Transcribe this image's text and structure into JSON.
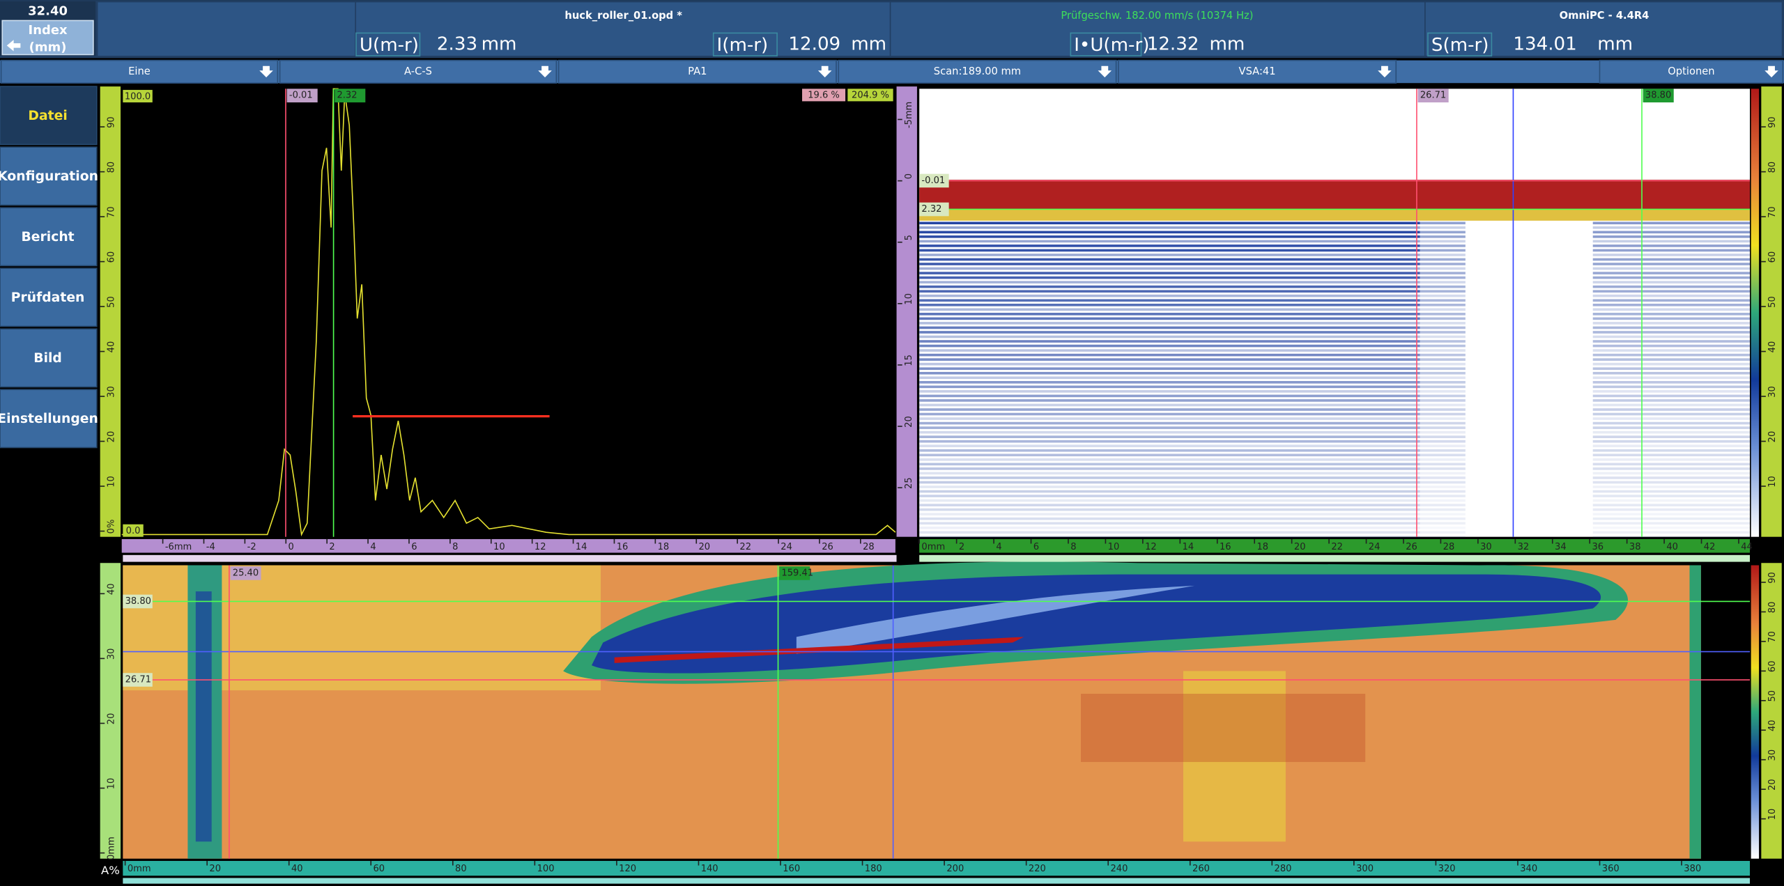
{
  "header": {
    "index_value": "32.40",
    "index_label": "Index",
    "index_unit": "(mm)",
    "file": "huck_roller_01.opd *",
    "speed": "Prüfgeschw. 182.00 mm/s (10374 Hz)",
    "app": "OmniPC - 4.4R4"
  },
  "readings": [
    {
      "label": "U(m-r)",
      "value": "2.33",
      "unit": "mm"
    },
    {
      "label": "I(m-r)",
      "value": "12.09",
      "unit": "mm"
    },
    {
      "label": "I•U(m-r)",
      "value": "12.32",
      "unit": "mm"
    },
    {
      "label": "S(m-r)",
      "value": "134.01",
      "unit": "mm"
    }
  ],
  "toolbar": [
    "Eine",
    "A-C-S",
    "PA1",
    "Scan:189.00 mm",
    "VSA:41",
    "Optionen"
  ],
  "menu": [
    "Datei",
    "Konfiguration",
    "Bericht",
    "Prüfdaten",
    "Bild",
    "Einstellungen"
  ],
  "ascan": {
    "xlim": [
      -8,
      29.7
    ],
    "xticks": [
      {
        "value": -6,
        "label": "-6mm"
      },
      -4,
      -2,
      0,
      2,
      4,
      6,
      8,
      10,
      12,
      14,
      16,
      18,
      20,
      22,
      24,
      26,
      28
    ],
    "ylim": [
      0,
      100
    ],
    "yticks": [
      {
        "value": 0,
        "label": "0%"
      },
      10,
      20,
      30,
      40,
      50,
      60,
      70,
      80,
      90
    ],
    "amp_markers": [
      "100.0",
      "0.0"
    ],
    "gate_labels": [
      "19.6 %",
      "204.9 %"
    ],
    "cursors": [
      {
        "value": -0.01,
        "label": "-0.01"
      },
      {
        "value": 2.32,
        "label": "2.32"
      }
    ]
  },
  "bscan": {
    "xlim": [
      0,
      44.6
    ],
    "xticks": [
      {
        "value": 0,
        "label": "0mm"
      },
      2,
      4,
      6,
      8,
      10,
      12,
      14,
      16,
      18,
      20,
      22,
      24,
      26,
      28,
      30,
      32,
      34,
      36,
      38,
      40,
      42,
      44
    ],
    "ylim": [
      -7.5,
      29
    ],
    "yticks": [
      {
        "value": -5,
        "label": "-5mm"
      },
      0,
      5,
      10,
      15,
      20,
      25
    ],
    "hcursors": [
      {
        "value": -0.01,
        "label": "-0.01"
      },
      {
        "value": 2.32,
        "label": "2.32"
      }
    ],
    "vcursors": [
      {
        "value": 26.71,
        "label": "26.71"
      },
      {
        "value": 38.8,
        "label": "38.80"
      }
    ]
  },
  "bscan_palette": {
    "ylim": [
      0,
      100
    ],
    "yticks": [
      10,
      20,
      30,
      40,
      50,
      60,
      70,
      80,
      90
    ]
  },
  "cscan": {
    "xlim": [
      0,
      385
    ],
    "xticks": [
      {
        "value": 0,
        "label": "0mm"
      },
      20,
      40,
      60,
      80,
      100,
      120,
      140,
      160,
      180,
      200,
      220,
      240,
      260,
      280,
      300,
      320,
      340,
      360,
      380
    ],
    "ylim": [
      0,
      45
    ],
    "yticks": [
      {
        "value": 0,
        "label": "0mm"
      },
      10,
      20,
      30,
      40
    ],
    "hcursors": [
      {
        "value": 38.8,
        "label": "38.80"
      },
      {
        "value": 26.71,
        "label": "26.71"
      }
    ],
    "vcursors": [
      {
        "value": 25.4,
        "label": "25.40"
      },
      {
        "value": 159.41,
        "label": "159.41"
      }
    ],
    "corner": "A%"
  },
  "cscan_palette": {
    "ylim": [
      0,
      100
    ],
    "yticks": [
      10,
      20,
      30,
      40,
      50,
      60,
      70,
      80,
      90
    ]
  }
}
